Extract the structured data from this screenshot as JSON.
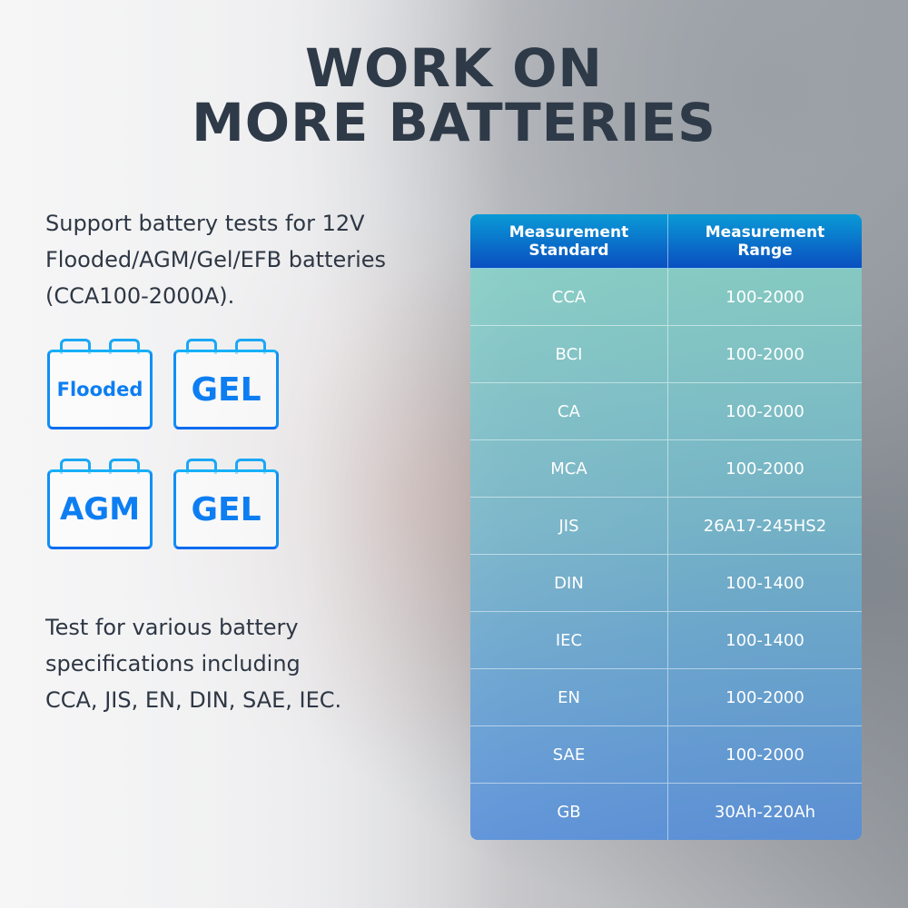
{
  "title": {
    "line1": "WORK ON",
    "line2": "MORE BATTERIES"
  },
  "intro": [
    "Support battery tests for 12V",
    "Flooded/AGM/Gel/EFB batteries",
    "(CCA100-2000A)."
  ],
  "battery_icons": [
    {
      "label": "Flooded"
    },
    {
      "label": "GEL"
    },
    {
      "label": "AGM"
    },
    {
      "label": "GEL"
    }
  ],
  "spec_text": [
    "Test for various battery",
    "specifications including",
    "CCA, JIS, EN, DIN, SAE, IEC."
  ],
  "table": {
    "headers": [
      [
        "Measurement",
        "Standard"
      ],
      [
        "Measurement",
        "Range"
      ]
    ],
    "rows": [
      [
        "CCA",
        "100-2000"
      ],
      [
        "BCI",
        "100-2000"
      ],
      [
        "CA",
        "100-2000"
      ],
      [
        "MCA",
        "100-2000"
      ],
      [
        "JIS",
        "26A17-245HS2"
      ],
      [
        "DIN",
        "100-1400"
      ],
      [
        "IEC",
        "100-1400"
      ],
      [
        "EN",
        "100-2000"
      ],
      [
        "SAE",
        "100-2000"
      ],
      [
        "GB",
        "30Ah-220Ah"
      ]
    ]
  },
  "colors": {
    "title": "#2f3a48",
    "icon_blue": "#0d7ef2",
    "header_blue": "#0a4fc0"
  }
}
